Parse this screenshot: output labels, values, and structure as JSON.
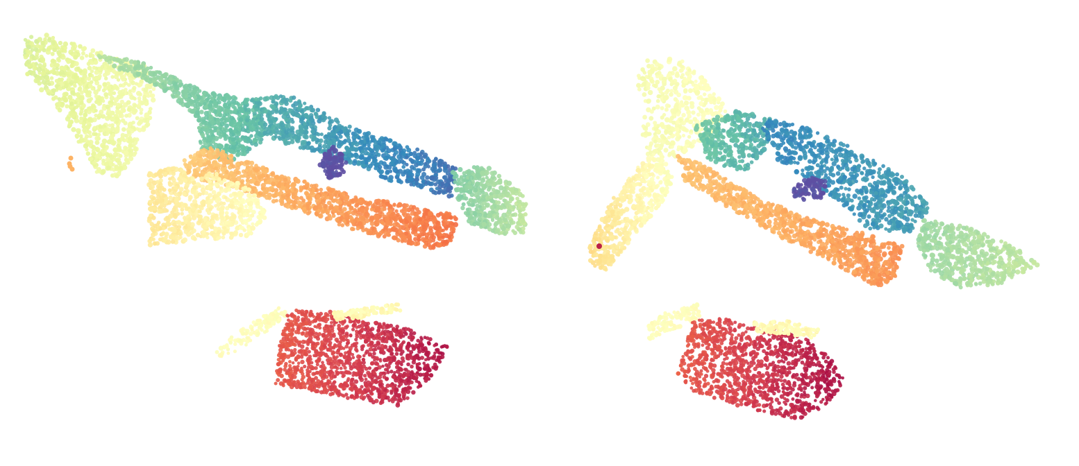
{
  "figure": {
    "kind": "point-cloud-comparison",
    "panel_count": 2,
    "colormap": "spectral",
    "palette": [
      "#9e0142",
      "#d53e4f",
      "#f46d43",
      "#fdae61",
      "#fee08b",
      "#ffffbf",
      "#e6f598",
      "#abdda4",
      "#66c2a5",
      "#3288bd",
      "#5e4fa2"
    ],
    "background": "#ffffff"
  },
  "panels": [
    {
      "id": "left",
      "regions": [
        {
          "name": "upper-left-wall",
          "color_value": 0.6,
          "palette_index": 6
        },
        {
          "name": "upper-beam",
          "color_value": 0.75,
          "palette_index": 8
        },
        {
          "name": "blue-beam-section",
          "color_value": 0.88,
          "palette_index": 9
        },
        {
          "name": "purple-cluster",
          "color_value": 1.0,
          "palette_index": 10
        },
        {
          "name": "right-end-cluster",
          "color_value": 0.7,
          "palette_index": 7
        },
        {
          "name": "orange-beam",
          "color_value": 0.25,
          "palette_index": 2
        },
        {
          "name": "pale-vertical-supports",
          "color_value": 0.5,
          "palette_index": 5
        },
        {
          "name": "yellow-strip",
          "color_value": 0.48,
          "palette_index": 5
        },
        {
          "name": "red-floor-grid",
          "color_value": 0.08,
          "palette_index": 1
        }
      ]
    },
    {
      "id": "right",
      "regions": [
        {
          "name": "upper-left-wall",
          "color_value": 0.55,
          "palette_index": 5
        },
        {
          "name": "upper-beam",
          "color_value": 0.75,
          "palette_index": 8
        },
        {
          "name": "blue-beam-section",
          "color_value": 0.88,
          "palette_index": 9
        },
        {
          "name": "purple-cluster",
          "color_value": 1.0,
          "palette_index": 10
        },
        {
          "name": "right-end-cluster",
          "color_value": 0.7,
          "palette_index": 7
        },
        {
          "name": "orange-beam",
          "color_value": 0.25,
          "palette_index": 2
        },
        {
          "name": "pale-vertical-supports",
          "color_value": 0.45,
          "palette_index": 4
        },
        {
          "name": "yellow-strip",
          "color_value": 0.48,
          "palette_index": 5
        },
        {
          "name": "red-floor-grid",
          "color_value": 0.08,
          "palette_index": 1
        }
      ]
    }
  ]
}
